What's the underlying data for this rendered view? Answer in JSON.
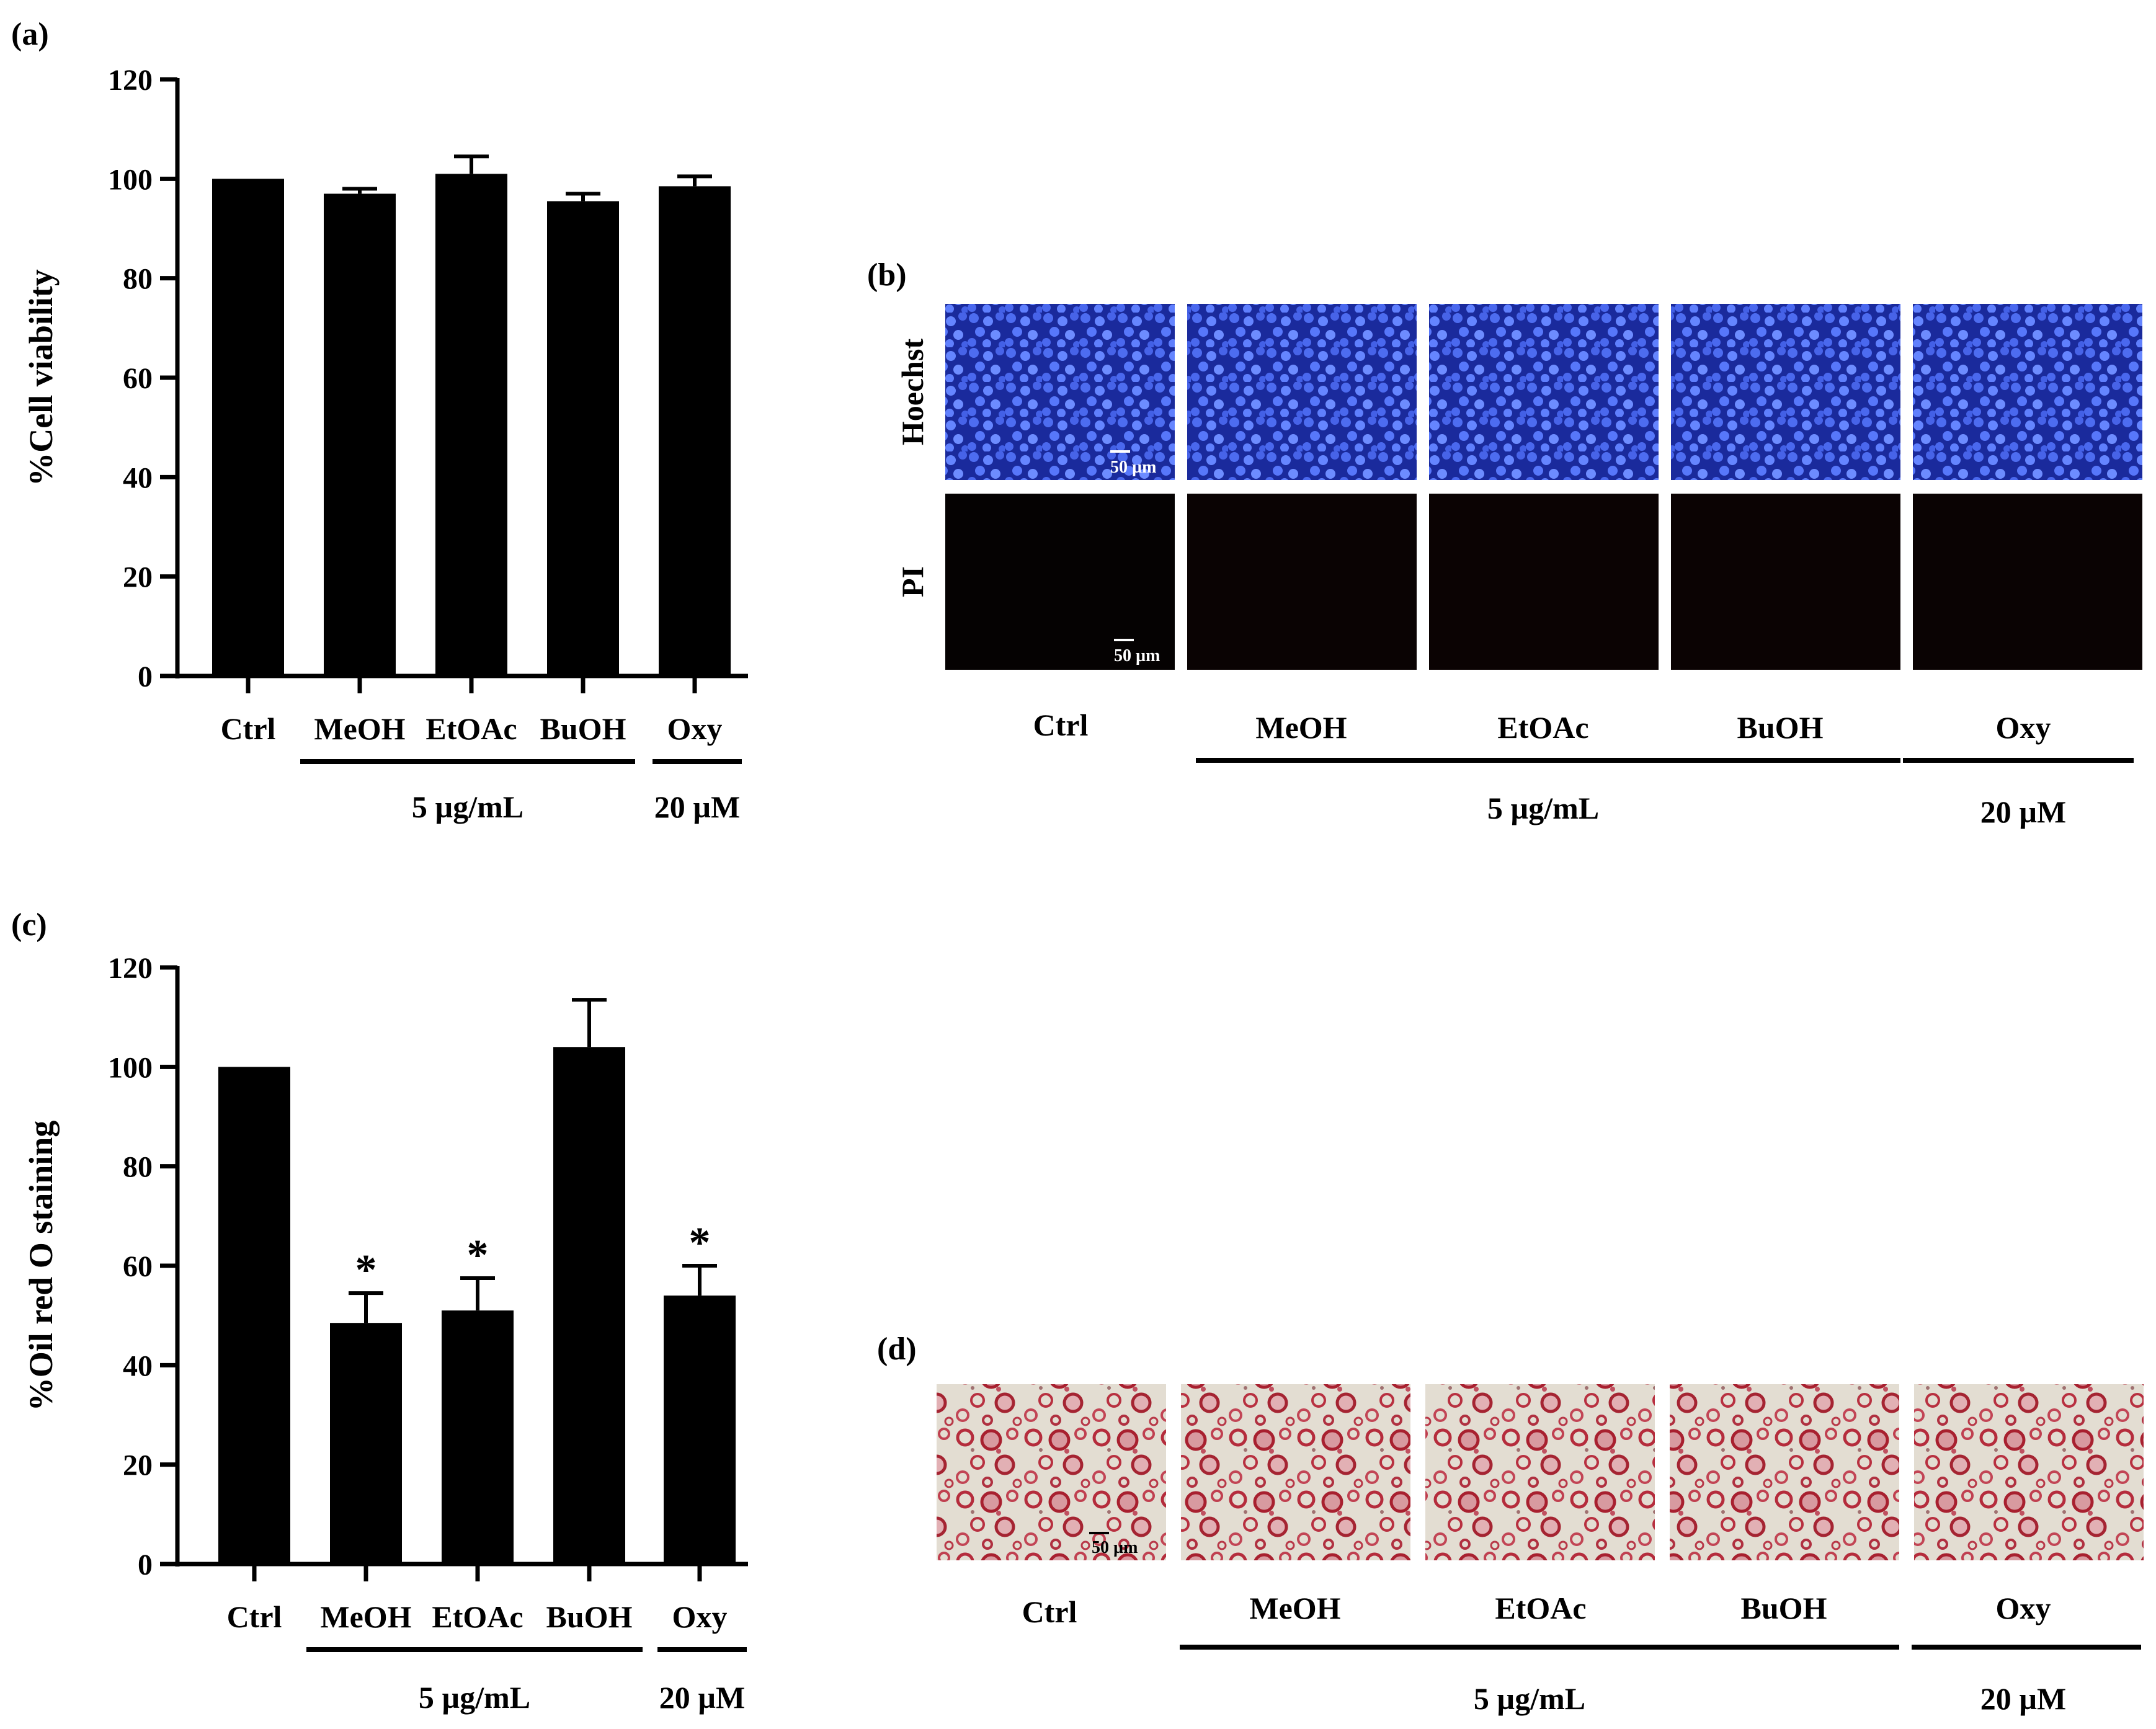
{
  "panels": {
    "a": {
      "label": "(a)"
    },
    "b": {
      "label": "(b)",
      "row_labels": [
        "Hoechst",
        "PI"
      ],
      "scale_bar": "50 µm"
    },
    "c": {
      "label": "(c)"
    },
    "d": {
      "label": "(d)",
      "scale_bar": "50 µm"
    }
  },
  "groups": {
    "categories": [
      "Ctrl",
      "MeOH",
      "EtOAc",
      "BuOH",
      "Oxy"
    ],
    "extract_dose": "5 µg/mL",
    "oxy_dose": "20 µM"
  },
  "chart_data": [
    {
      "type": "bar",
      "categories": [
        "Ctrl",
        "MeOH",
        "EtOAc",
        "BuOH",
        "Oxy"
      ],
      "values": [
        100,
        97,
        101,
        95.5,
        98.5
      ],
      "errors": [
        0,
        1,
        3.5,
        1.5,
        2
      ],
      "significance": [
        "",
        "",
        "",
        "",
        ""
      ],
      "ylabel": "%Cell viability",
      "ylim": [
        0,
        120
      ],
      "yticks": [
        0,
        20,
        40,
        60,
        80,
        100,
        120
      ]
    },
    {
      "type": "bar",
      "categories": [
        "Ctrl",
        "MeOH",
        "EtOAc",
        "BuOH",
        "Oxy"
      ],
      "values": [
        100,
        48.5,
        51,
        104,
        54
      ],
      "errors": [
        0,
        6,
        6.5,
        9.5,
        6
      ],
      "significance": [
        "",
        "*",
        "*",
        "",
        "*"
      ],
      "ylabel": "%Oil red O staining",
      "ylim": [
        0,
        120
      ],
      "yticks": [
        0,
        20,
        40,
        60,
        80,
        100,
        120
      ]
    }
  ],
  "colors": {
    "bar": "#000000",
    "hoechst_bg": "#1a2a9c",
    "hoechst_nucleus": "#5c7cff",
    "pi_bg": "#050202",
    "oil_bg": "#e3ddd2",
    "oil_droplet": "#b83040"
  }
}
